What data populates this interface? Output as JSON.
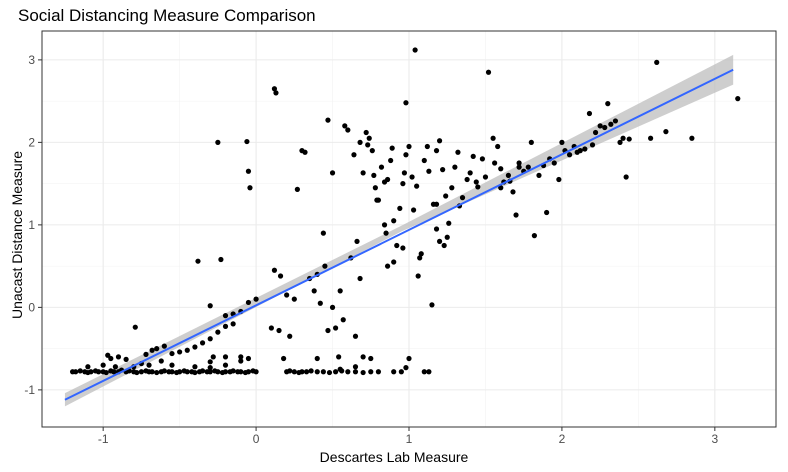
{
  "chart_data": {
    "type": "scatter",
    "title": "Social Distancing Measure Comparison",
    "xlabel": "Descartes Lab Measure",
    "ylabel": "Unacast Distance Measure",
    "xlim": [
      -1.4,
      3.4
    ],
    "ylim": [
      -1.45,
      3.35
    ],
    "x_ticks": [
      -1,
      0,
      1,
      2,
      3
    ],
    "y_ticks": [
      -1,
      0,
      1,
      2,
      3
    ],
    "grid": true,
    "points": [
      [
        -1.2,
        -0.78
      ],
      [
        -1.18,
        -0.78
      ],
      [
        -1.15,
        -0.77
      ],
      [
        -1.12,
        -0.78
      ],
      [
        -1.1,
        -0.79
      ],
      [
        -1.08,
        -0.78
      ],
      [
        -1.05,
        -0.77
      ],
      [
        -1.03,
        -0.78
      ],
      [
        -1.0,
        -0.78
      ],
      [
        -0.98,
        -0.79
      ],
      [
        -0.95,
        -0.77
      ],
      [
        -0.93,
        -0.78
      ],
      [
        -0.9,
        -0.78
      ],
      [
        -0.88,
        -0.76
      ],
      [
        -0.85,
        -0.78
      ],
      [
        -0.83,
        -0.77
      ],
      [
        -0.8,
        -0.78
      ],
      [
        -0.78,
        -0.79
      ],
      [
        -0.75,
        -0.78
      ],
      [
        -0.72,
        -0.77
      ],
      [
        -0.7,
        -0.78
      ],
      [
        -0.68,
        -0.78
      ],
      [
        -0.65,
        -0.79
      ],
      [
        -0.62,
        -0.78
      ],
      [
        -0.6,
        -0.77
      ],
      [
        -0.57,
        -0.78
      ],
      [
        -0.55,
        -0.78
      ],
      [
        -0.52,
        -0.79
      ],
      [
        -0.5,
        -0.78
      ],
      [
        -0.47,
        -0.77
      ],
      [
        -0.45,
        -0.78
      ],
      [
        -0.42,
        -0.78
      ],
      [
        -0.4,
        -0.79
      ],
      [
        -0.37,
        -0.78
      ],
      [
        -0.35,
        -0.77
      ],
      [
        -0.32,
        -0.78
      ],
      [
        -0.3,
        -0.78
      ],
      [
        -0.27,
        -0.77
      ],
      [
        -0.25,
        -0.78
      ],
      [
        -0.22,
        -0.79
      ],
      [
        -0.2,
        -0.78
      ],
      [
        -0.17,
        -0.78
      ],
      [
        -0.15,
        -0.77
      ],
      [
        -0.12,
        -0.78
      ],
      [
        -0.1,
        -0.78
      ],
      [
        -0.07,
        -0.79
      ],
      [
        -0.05,
        -0.78
      ],
      [
        -0.02,
        -0.77
      ],
      [
        0.0,
        -0.78
      ],
      [
        -1.1,
        -0.72
      ],
      [
        -1.0,
        -0.7
      ],
      [
        -0.95,
        -0.62
      ],
      [
        -0.9,
        -0.6
      ],
      [
        -0.85,
        -0.63
      ],
      [
        -0.8,
        -0.72
      ],
      [
        -0.75,
        -0.68
      ],
      [
        -0.72,
        -0.57
      ],
      [
        -0.68,
        -0.52
      ],
      [
        -0.65,
        -0.5
      ],
      [
        -0.6,
        -0.47
      ],
      [
        -0.55,
        -0.56
      ],
      [
        -0.5,
        -0.54
      ],
      [
        -0.45,
        -0.52
      ],
      [
        -0.4,
        -0.48
      ],
      [
        -0.35,
        -0.43
      ],
      [
        -0.3,
        -0.38
      ],
      [
        -0.25,
        -0.3
      ],
      [
        -0.2,
        -0.23
      ],
      [
        -0.15,
        -0.08
      ],
      [
        -0.1,
        -0.05
      ],
      [
        -0.05,
        0.06
      ],
      [
        0.0,
        0.1
      ],
      [
        -0.79,
        -0.24
      ],
      [
        -0.38,
        0.56
      ],
      [
        -0.23,
        0.58
      ],
      [
        -0.3,
        0.02
      ],
      [
        -0.2,
        -0.1
      ],
      [
        -0.15,
        -0.2
      ],
      [
        -0.28,
        -0.6
      ],
      [
        -0.2,
        -0.6
      ],
      [
        -0.1,
        -0.65
      ],
      [
        -0.05,
        -0.62
      ],
      [
        -0.25,
        2.0
      ],
      [
        -0.06,
        2.01
      ],
      [
        -0.05,
        1.65
      ],
      [
        -0.04,
        1.45
      ],
      [
        -0.2,
        -0.7
      ],
      [
        -0.3,
        -0.66
      ],
      [
        0.12,
        2.65
      ],
      [
        0.13,
        2.6
      ],
      [
        0.2,
        -0.78
      ],
      [
        0.22,
        -0.77
      ],
      [
        0.25,
        -0.78
      ],
      [
        0.28,
        -0.79
      ],
      [
        0.3,
        -0.78
      ],
      [
        0.33,
        -0.78
      ],
      [
        0.36,
        -0.77
      ],
      [
        0.4,
        -0.78
      ],
      [
        0.44,
        -0.78
      ],
      [
        0.48,
        -0.79
      ],
      [
        0.52,
        -0.78
      ],
      [
        0.56,
        -0.77
      ],
      [
        0.6,
        -0.78
      ],
      [
        0.65,
        -0.78
      ],
      [
        0.7,
        -0.79
      ],
      [
        0.75,
        -0.78
      ],
      [
        0.8,
        -0.78
      ],
      [
        0.9,
        -0.78
      ],
      [
        0.95,
        -0.78
      ],
      [
        1.1,
        -0.78
      ],
      [
        0.12,
        0.45
      ],
      [
        0.16,
        0.38
      ],
      [
        0.2,
        0.15
      ],
      [
        0.25,
        0.1
      ],
      [
        0.18,
        -0.62
      ],
      [
        0.15,
        -0.28
      ],
      [
        0.1,
        -0.25
      ],
      [
        0.22,
        -0.35
      ],
      [
        0.27,
        1.43
      ],
      [
        0.3,
        1.9
      ],
      [
        0.32,
        1.88
      ],
      [
        0.35,
        0.35
      ],
      [
        0.38,
        0.2
      ],
      [
        0.4,
        0.4
      ],
      [
        0.42,
        0.05
      ],
      [
        0.44,
        0.9
      ],
      [
        0.45,
        0.5
      ],
      [
        0.47,
        -0.28
      ],
      [
        0.5,
        0.0
      ],
      [
        0.52,
        -0.25
      ],
      [
        0.55,
        0.2
      ],
      [
        0.57,
        -0.15
      ],
      [
        0.6,
        2.15
      ],
      [
        0.62,
        0.6
      ],
      [
        0.64,
        1.85
      ],
      [
        0.65,
        -0.35
      ],
      [
        0.66,
        0.8
      ],
      [
        0.7,
        1.63
      ],
      [
        0.72,
        2.12
      ],
      [
        0.73,
        1.97
      ],
      [
        0.74,
        2.05
      ],
      [
        0.76,
        1.9
      ],
      [
        0.77,
        1.6
      ],
      [
        0.78,
        1.45
      ],
      [
        0.8,
        1.3
      ],
      [
        0.82,
        1.7
      ],
      [
        0.84,
        1.52
      ],
      [
        0.86,
        1.55
      ],
      [
        0.88,
        1.78
      ],
      [
        0.89,
        1.93
      ],
      [
        0.9,
        1.05
      ],
      [
        0.92,
        0.75
      ],
      [
        0.94,
        1.2
      ],
      [
        0.96,
        1.5
      ],
      [
        0.97,
        1.63
      ],
      [
        0.98,
        1.85
      ],
      [
        1.0,
        1.95
      ],
      [
        1.02,
        1.58
      ],
      [
        1.03,
        1.18
      ],
      [
        1.04,
        3.12
      ],
      [
        1.05,
        1.47
      ],
      [
        1.07,
        0.6
      ],
      [
        1.08,
        0.65
      ],
      [
        1.1,
        1.78
      ],
      [
        1.12,
        1.95
      ],
      [
        1.13,
        1.65
      ],
      [
        1.15,
        0.03
      ],
      [
        1.16,
        1.25
      ],
      [
        1.18,
        1.9
      ],
      [
        1.2,
        2.02
      ],
      [
        1.22,
        1.67
      ],
      [
        1.24,
        1.35
      ],
      [
        1.26,
        1.02
      ],
      [
        1.28,
        1.45
      ],
      [
        1.3,
        1.7
      ],
      [
        1.32,
        1.88
      ],
      [
        1.35,
        1.33
      ],
      [
        1.38,
        1.55
      ],
      [
        1.4,
        1.63
      ],
      [
        1.42,
        1.83
      ],
      [
        1.45,
        1.46
      ],
      [
        1.48,
        1.8
      ],
      [
        1.5,
        1.58
      ],
      [
        1.52,
        2.85
      ],
      [
        1.55,
        2.05
      ],
      [
        1.58,
        1.95
      ],
      [
        1.6,
        1.68
      ],
      [
        1.62,
        1.52
      ],
      [
        1.65,
        1.6
      ],
      [
        1.68,
        1.4
      ],
      [
        1.7,
        1.12
      ],
      [
        1.72,
        1.75
      ],
      [
        1.75,
        1.65
      ],
      [
        1.78,
        1.7
      ],
      [
        1.8,
        2.0
      ],
      [
        1.82,
        0.87
      ],
      [
        1.85,
        1.6
      ],
      [
        1.88,
        1.72
      ],
      [
        1.9,
        1.15
      ],
      [
        1.92,
        1.8
      ],
      [
        1.95,
        1.75
      ],
      [
        1.98,
        1.55
      ],
      [
        2.0,
        2.0
      ],
      [
        2.02,
        1.9
      ],
      [
        2.05,
        1.85
      ],
      [
        2.08,
        1.95
      ],
      [
        2.1,
        1.88
      ],
      [
        2.12,
        1.9
      ],
      [
        2.15,
        1.92
      ],
      [
        2.18,
        2.35
      ],
      [
        2.2,
        1.97
      ],
      [
        2.22,
        2.12
      ],
      [
        2.25,
        2.2
      ],
      [
        2.28,
        2.18
      ],
      [
        2.3,
        2.47
      ],
      [
        2.32,
        2.22
      ],
      [
        2.35,
        2.26
      ],
      [
        2.38,
        2.0
      ],
      [
        2.4,
        2.05
      ],
      [
        2.42,
        1.58
      ],
      [
        2.44,
        2.04
      ],
      [
        2.58,
        2.05
      ],
      [
        2.62,
        2.97
      ],
      [
        2.68,
        2.13
      ],
      [
        2.85,
        2.05
      ],
      [
        3.15,
        2.53
      ],
      [
        1.13,
        -0.78
      ],
      [
        1.0,
        -0.62
      ],
      [
        0.98,
        -0.73
      ],
      [
        0.75,
        -0.62
      ],
      [
        0.7,
        -0.6
      ],
      [
        0.65,
        -0.72
      ],
      [
        0.55,
        -0.75
      ],
      [
        0.4,
        -0.62
      ],
      [
        0.58,
        2.2
      ],
      [
        0.47,
        2.27
      ],
      [
        0.68,
        0.35
      ],
      [
        0.84,
        1.0
      ],
      [
        1.18,
        1.25
      ],
      [
        1.25,
        0.85
      ],
      [
        1.2,
        0.8
      ],
      [
        1.23,
        0.75
      ],
      [
        0.86,
        0.5
      ],
      [
        0.9,
        0.55
      ],
      [
        0.79,
        1.3
      ],
      [
        0.85,
        0.9
      ],
      [
        0.96,
        0.72
      ],
      [
        1.06,
        0.38
      ],
      [
        1.18,
        0.95
      ],
      [
        1.33,
        1.23
      ],
      [
        1.44,
        1.52
      ],
      [
        1.56,
        1.75
      ],
      [
        1.6,
        1.45
      ],
      [
        1.66,
        1.53
      ],
      [
        1.72,
        1.7
      ],
      [
        0.98,
        2.48
      ],
      [
        0.5,
        1.63
      ],
      [
        0.68,
        2.0
      ],
      [
        0.54,
        -0.6
      ],
      [
        -0.1,
        -0.6
      ],
      [
        -0.3,
        -0.73
      ],
      [
        -0.4,
        -0.72
      ],
      [
        -0.55,
        -0.7
      ],
      [
        -0.62,
        -0.65
      ],
      [
        -0.7,
        -0.7
      ],
      [
        -0.92,
        -0.72
      ],
      [
        -0.97,
        -0.58
      ]
    ],
    "fit_line": {
      "x": [
        -1.25,
        3.12
      ],
      "y": [
        -1.12,
        2.88
      ],
      "color": "#3366FF"
    },
    "confidence_band": {
      "x": [
        -1.25,
        0.95,
        3.12
      ],
      "y_low": [
        -1.2,
        0.92,
        2.7
      ],
      "y_high": [
        -1.04,
        0.99,
        3.06
      ],
      "color": "#BEBEBE"
    }
  }
}
